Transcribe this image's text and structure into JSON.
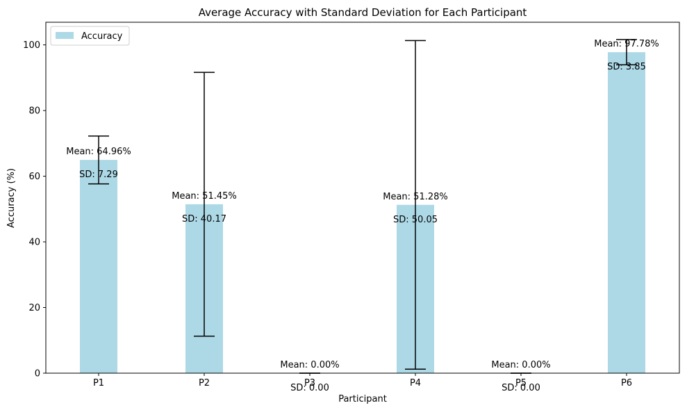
{
  "chart_data": {
    "type": "bar",
    "title": "Average Accuracy with Standard Deviation for Each Participant",
    "xlabel": "Participant",
    "ylabel": "Accuracy (%)",
    "categories": [
      "P1",
      "P2",
      "P3",
      "P4",
      "P5",
      "P6"
    ],
    "series": [
      {
        "name": "Accuracy",
        "values": [
          64.96,
          51.45,
          0.0,
          51.28,
          0.0,
          97.78
        ],
        "sd": [
          7.29,
          40.17,
          0.0,
          50.05,
          0.0,
          3.85
        ],
        "mean_labels": [
          "Mean: 64.96%",
          "Mean: 51.45%",
          "Mean: 0.00%",
          "Mean: 51.28%",
          "Mean: 0.00%",
          "Mean: 97.78%"
        ],
        "sd_labels": [
          "SD: 7.29",
          "SD: 40.17",
          "SD: 0.00",
          "SD: 50.05",
          "SD: 0.00",
          "SD: 3.85"
        ]
      }
    ],
    "ylim": [
      0,
      106.9
    ],
    "yticks": [
      0,
      20,
      40,
      60,
      80,
      100
    ],
    "legend": "top-left",
    "grid": false,
    "colors": {
      "bar": "#add8e6",
      "errorbar": "#000000"
    }
  }
}
